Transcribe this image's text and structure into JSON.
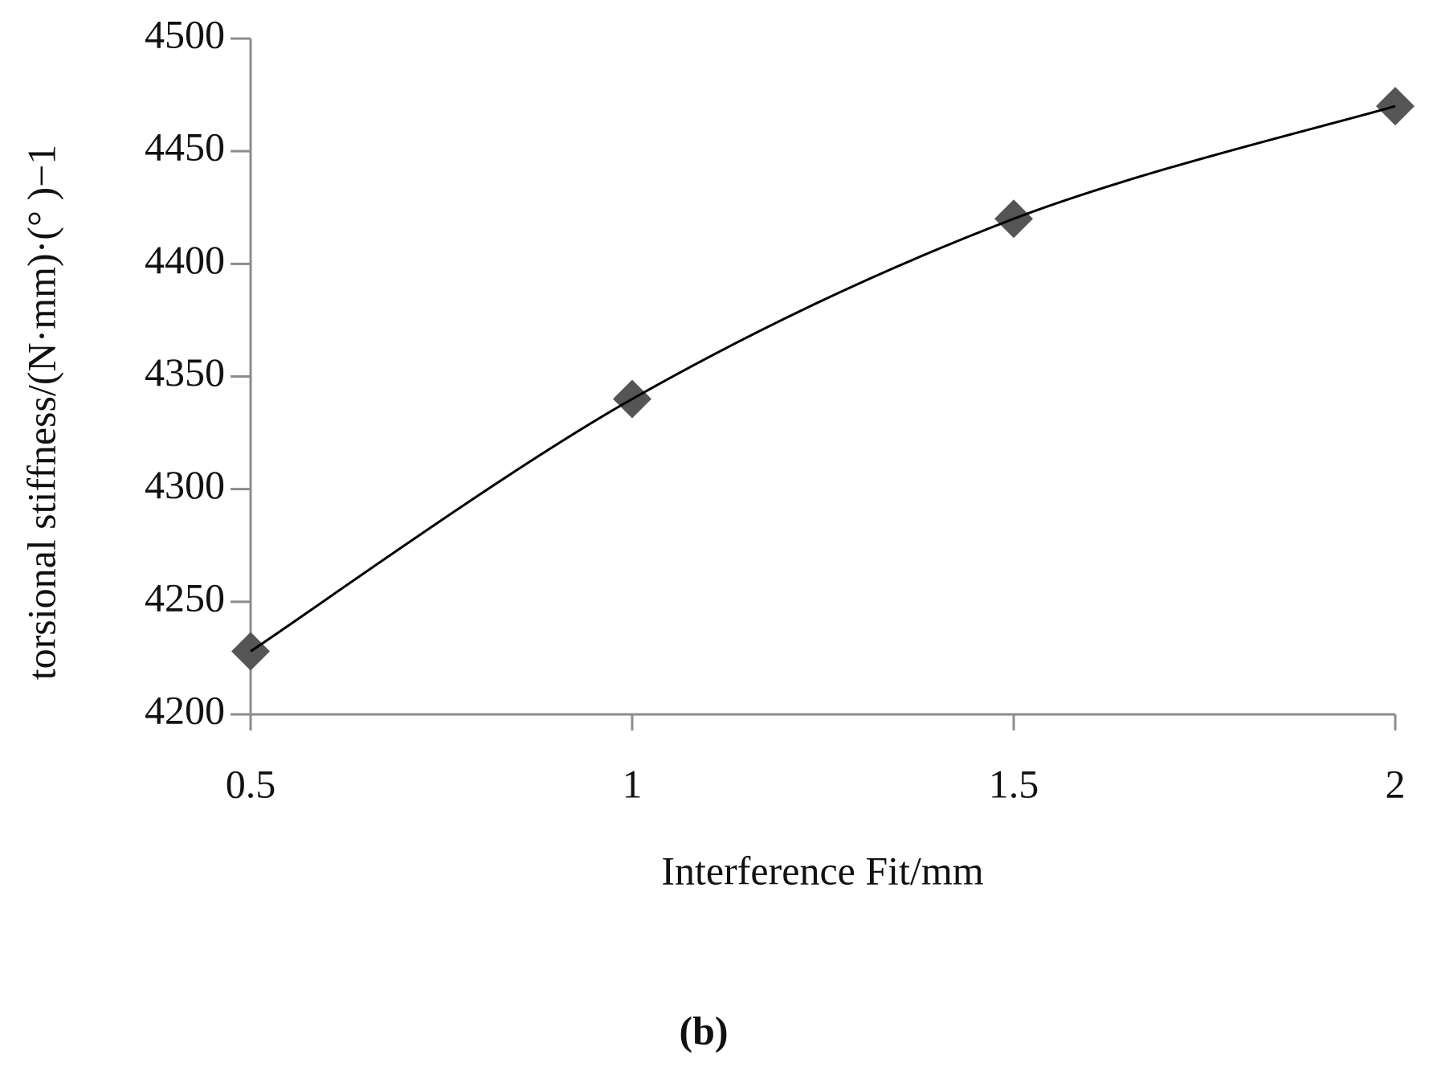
{
  "chart_data": {
    "type": "line",
    "x_label": "Interference Fit/mm",
    "y_label": "torsional stiffness/(N·mm)·(°  )−1",
    "caption": "(b)",
    "x": [
      0.5,
      1,
      1.5,
      2
    ],
    "series": [
      {
        "name": "torsional stiffness",
        "color": "#555555",
        "values": [
          4228,
          4340,
          4420,
          4470
        ]
      }
    ],
    "line_color": "#000000",
    "marker": "diamond",
    "xlim": [
      0.5,
      2
    ],
    "xticks": [
      0.5,
      1,
      1.5,
      2
    ],
    "ylim": [
      4200,
      4500
    ],
    "yticks": [
      4200,
      4250,
      4300,
      4350,
      4400,
      4450,
      4500
    ],
    "grid": false
  }
}
